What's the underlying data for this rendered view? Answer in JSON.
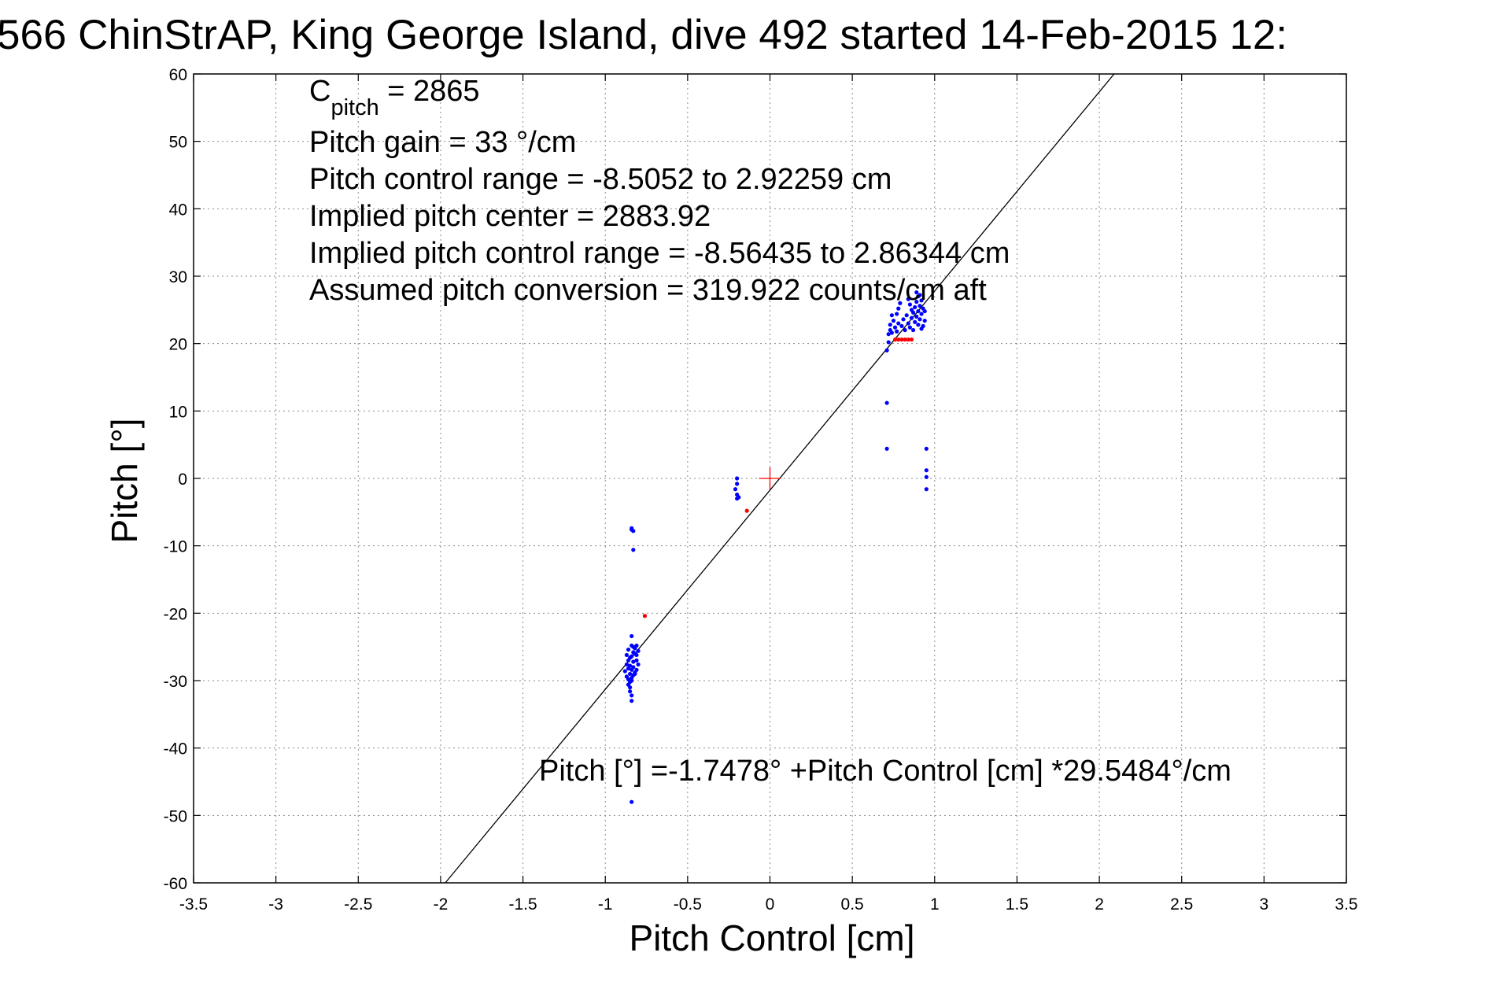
{
  "title": "566 ChinStrAP, King George Island, dive 492 started 14-Feb-2015 12:",
  "chart_data": {
    "type": "scatter",
    "xlabel": "Pitch Control [cm]",
    "ylabel": "Pitch [°]",
    "xlim": [
      -3.5,
      3.5
    ],
    "ylim": [
      -60,
      60
    ],
    "xticks": [
      -3.5,
      -3,
      -2.5,
      -2,
      -1.5,
      -1,
      -0.5,
      0,
      0.5,
      1,
      1.5,
      2,
      2.5,
      3,
      3.5
    ],
    "xtick_labels": [
      "-3.5",
      "-3",
      "-2.5",
      "-2",
      "-1.5",
      "-1",
      "-0.5",
      "0",
      "0.5",
      "1",
      "1.5",
      "2",
      "2.5",
      "3",
      "3.5"
    ],
    "yticks": [
      -60,
      -50,
      -40,
      -30,
      -20,
      -10,
      0,
      10,
      20,
      30,
      40,
      50,
      60
    ],
    "ytick_labels": [
      "-60",
      "-50",
      "-40",
      "-30",
      "-20",
      "-10",
      "0",
      "10",
      "20",
      "30",
      "40",
      "50",
      "60"
    ],
    "grid": true,
    "fit_line": {
      "intercept": -1.7478,
      "slope": 29.5484
    },
    "center_marker": {
      "x": 0,
      "y": 0,
      "color": "#ff0000"
    },
    "series": [
      {
        "color": "#0000ff",
        "points": [
          [
            -0.84,
            -7.4
          ],
          [
            -0.83,
            -7.8
          ],
          [
            -0.84,
            -7.6
          ],
          [
            -0.83,
            -10.6
          ],
          [
            -0.84,
            -23.4
          ],
          [
            -0.84,
            -24.8
          ],
          [
            -0.83,
            -25.0
          ],
          [
            -0.86,
            -25.4
          ],
          [
            -0.87,
            -26.2
          ],
          [
            -0.85,
            -26.6
          ],
          [
            -0.83,
            -25.8
          ],
          [
            -0.82,
            -25.2
          ],
          [
            -0.81,
            -24.8
          ],
          [
            -0.86,
            -27.0
          ],
          [
            -0.87,
            -27.6
          ],
          [
            -0.85,
            -27.8
          ],
          [
            -0.84,
            -26.4
          ],
          [
            -0.83,
            -27.2
          ],
          [
            -0.82,
            -26.0
          ],
          [
            -0.81,
            -27.0
          ],
          [
            -0.86,
            -28.2
          ],
          [
            -0.88,
            -28.6
          ],
          [
            -0.85,
            -29.0
          ],
          [
            -0.84,
            -28.4
          ],
          [
            -0.83,
            -28.0
          ],
          [
            -0.82,
            -28.8
          ],
          [
            -0.87,
            -29.4
          ],
          [
            -0.86,
            -29.8
          ],
          [
            -0.85,
            -30.2
          ],
          [
            -0.84,
            -29.6
          ],
          [
            -0.83,
            -29.2
          ],
          [
            -0.82,
            -29.0
          ],
          [
            -0.86,
            -30.6
          ],
          [
            -0.85,
            -31.0
          ],
          [
            -0.84,
            -30.0
          ],
          [
            -0.81,
            -28.4
          ],
          [
            -0.8,
            -27.6
          ],
          [
            -0.81,
            -26.2
          ],
          [
            -0.8,
            -25.6
          ],
          [
            -0.85,
            -31.6
          ],
          [
            -0.84,
            -32.2
          ],
          [
            -0.84,
            -33.0
          ],
          [
            -0.84,
            -48.0
          ],
          [
            -0.2,
            0.0
          ],
          [
            -0.2,
            -0.8
          ],
          [
            -0.21,
            -1.6
          ],
          [
            -0.2,
            -2.4
          ],
          [
            -0.19,
            -2.8
          ],
          [
            -0.2,
            -3.0
          ],
          [
            0.71,
            11.2
          ],
          [
            0.71,
            4.4
          ],
          [
            0.71,
            19.0
          ],
          [
            0.72,
            20.2
          ],
          [
            0.72,
            21.4
          ],
          [
            0.73,
            22.0
          ],
          [
            0.74,
            21.6
          ],
          [
            0.73,
            22.8
          ],
          [
            0.75,
            23.4
          ],
          [
            0.74,
            24.2
          ],
          [
            0.76,
            22.4
          ],
          [
            0.77,
            21.8
          ],
          [
            0.78,
            23.0
          ],
          [
            0.77,
            24.4
          ],
          [
            0.78,
            25.2
          ],
          [
            0.79,
            26.0
          ],
          [
            0.8,
            22.6
          ],
          [
            0.81,
            23.6
          ],
          [
            0.82,
            22.0
          ],
          [
            0.83,
            24.2
          ],
          [
            0.84,
            23.0
          ],
          [
            0.85,
            22.4
          ],
          [
            0.86,
            23.8
          ],
          [
            0.87,
            24.6
          ],
          [
            0.88,
            25.4
          ],
          [
            0.89,
            26.2
          ],
          [
            0.9,
            27.0
          ],
          [
            0.88,
            23.2
          ],
          [
            0.89,
            24.0
          ],
          [
            0.9,
            24.8
          ],
          [
            0.91,
            25.6
          ],
          [
            0.92,
            26.4
          ],
          [
            0.91,
            23.6
          ],
          [
            0.92,
            24.4
          ],
          [
            0.93,
            25.2
          ],
          [
            0.94,
            23.4
          ],
          [
            0.93,
            22.6
          ],
          [
            0.9,
            22.8
          ],
          [
            0.87,
            22.0
          ],
          [
            0.89,
            27.6
          ],
          [
            0.91,
            27.2
          ],
          [
            0.86,
            25.0
          ],
          [
            0.85,
            25.8
          ],
          [
            0.84,
            26.6
          ],
          [
            0.92,
            22.2
          ],
          [
            0.94,
            24.8
          ],
          [
            0.95,
            4.4
          ],
          [
            0.95,
            1.2
          ],
          [
            0.95,
            0.2
          ],
          [
            0.95,
            -1.6
          ]
        ]
      },
      {
        "color": "#ff0000",
        "points": [
          [
            -0.76,
            -20.4
          ],
          [
            -0.14,
            -4.8
          ],
          [
            0.76,
            20.6
          ],
          [
            0.78,
            20.6
          ],
          [
            0.8,
            20.6
          ],
          [
            0.82,
            20.6
          ],
          [
            0.84,
            20.6
          ],
          [
            0.86,
            20.6
          ]
        ]
      }
    ],
    "annotations": {
      "cpitch_main": "C",
      "cpitch_sub": "pitch",
      "cpitch_value": " = 2865",
      "lines": [
        "Pitch gain = 33 °/cm",
        "Pitch control range = -8.5052 to 2.92259 cm",
        "Implied pitch center = 2883.92",
        "Implied pitch control range = -8.56435 to 2.86344 cm",
        "Assumed pitch conversion = 319.922 counts/cm aft"
      ],
      "fit_text": "Pitch [°] =-1.7478° +Pitch Control [cm] *29.5484°/cm"
    }
  }
}
